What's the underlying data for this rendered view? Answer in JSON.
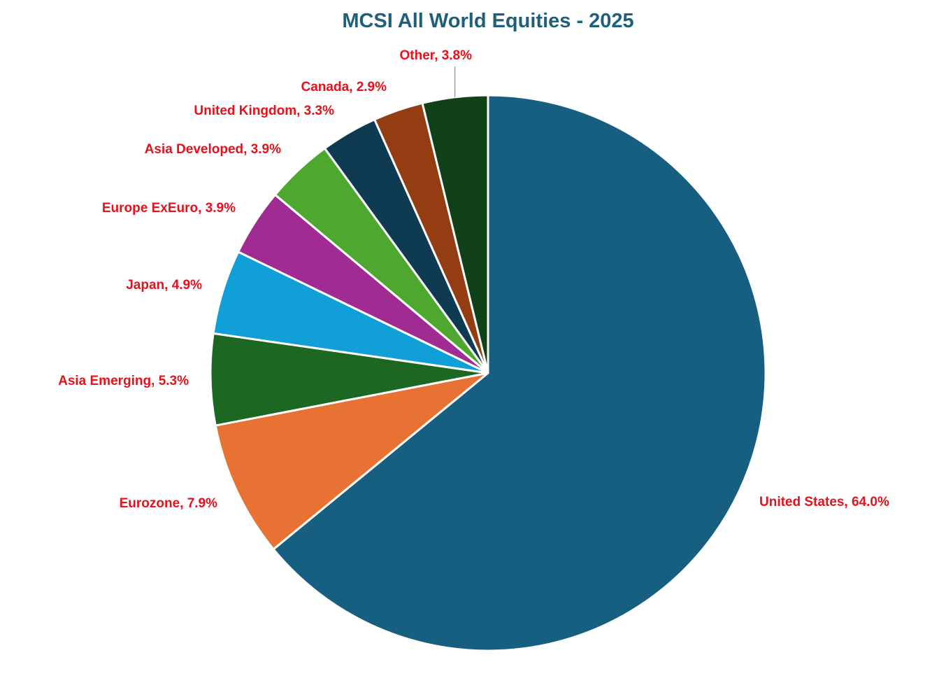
{
  "chart_data": {
    "type": "pie",
    "title": "MCSI All World Equities - 2025",
    "slices": [
      {
        "label": "United States, 64.0%",
        "name": "United States",
        "value": 64.0,
        "color": "#175f80"
      },
      {
        "label": "Eurozone, 7.9%",
        "name": "Eurozone",
        "value": 7.9,
        "color": "#e87234"
      },
      {
        "label": "Asia Emerging, 5.3%",
        "name": "Asia Emerging",
        "value": 5.3,
        "color": "#1c6823"
      },
      {
        "label": "Japan, 4.9%",
        "name": "Japan",
        "value": 4.9,
        "color": "#109fd6"
      },
      {
        "label": "Europe ExEuro, 3.9%",
        "name": "Europe ExEuro",
        "value": 3.9,
        "color": "#a02b93"
      },
      {
        "label": "Asia Developed, 3.9%",
        "name": "Asia Developed",
        "value": 3.9,
        "color": "#4ea72e"
      },
      {
        "label": "United Kingdom, 3.3%",
        "name": "United Kingdom",
        "value": 3.3,
        "color": "#0e3a52"
      },
      {
        "label": "Canada, 2.9%",
        "name": "Canada",
        "value": 2.9,
        "color": "#943d12"
      },
      {
        "label": "Other, 3.8%",
        "name": "Other",
        "value": 3.8,
        "color": "#114118"
      }
    ],
    "legend": "none",
    "label_color": "#e8101a"
  }
}
